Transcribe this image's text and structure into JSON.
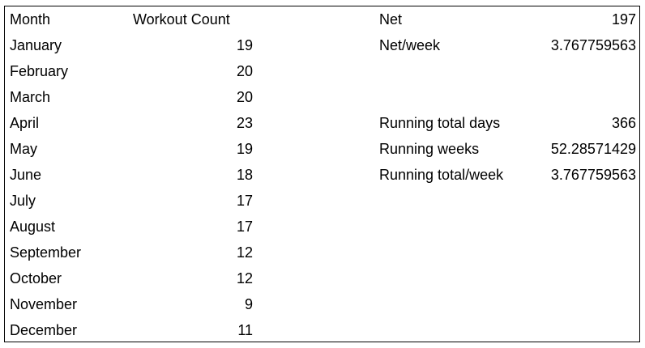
{
  "table": {
    "headers": {
      "month": "Month",
      "count": "Workout Count"
    },
    "rows": [
      {
        "month": "January",
        "count": "19"
      },
      {
        "month": "February",
        "count": "20"
      },
      {
        "month": "March",
        "count": "20"
      },
      {
        "month": "April",
        "count": "23"
      },
      {
        "month": "May",
        "count": "19"
      },
      {
        "month": "June",
        "count": "18"
      },
      {
        "month": "July",
        "count": "17"
      },
      {
        "month": "August",
        "count": "17"
      },
      {
        "month": "September",
        "count": "12"
      },
      {
        "month": "October",
        "count": "12"
      },
      {
        "month": "November",
        "count": "9"
      },
      {
        "month": "December",
        "count": "11"
      }
    ]
  },
  "stats": {
    "net": {
      "label": "Net",
      "value": "197"
    },
    "net_week": {
      "label": "Net/week",
      "value": "3.767759563"
    },
    "running_total_days": {
      "label": "Running total days",
      "value": "366"
    },
    "running_weeks": {
      "label": "Running weeks",
      "value": "52.28571429"
    },
    "running_total_week": {
      "label": "Running total/week",
      "value": "3.767759563"
    }
  }
}
